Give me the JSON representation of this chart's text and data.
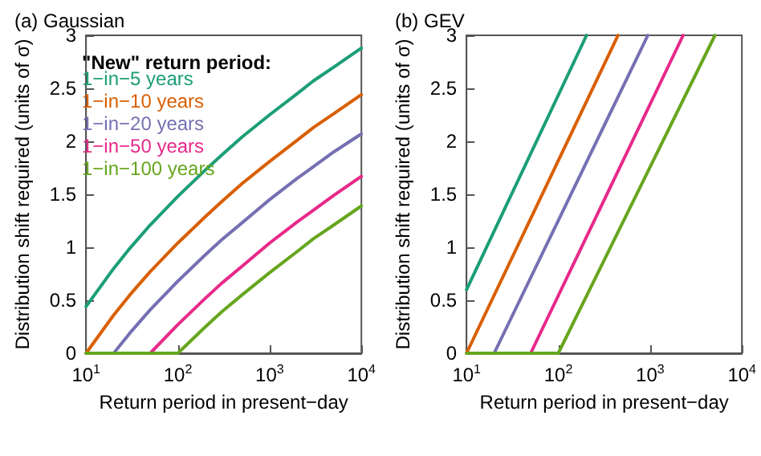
{
  "chart_data": [
    {
      "type": "line",
      "title": "(a) Gaussian",
      "xlabel": "Return period in present−day",
      "ylabel": "Distribution shift required (units of σ)",
      "legend_title": "\"New\" return period:",
      "legend": "top left",
      "log": "x",
      "grid": false,
      "marker": "none",
      "line_style": "solid",
      "x": [
        10,
        20,
        30,
        50,
        100,
        200,
        300,
        500,
        1000,
        2000,
        3000,
        5000,
        10000
      ],
      "xlim": [
        10,
        10000
      ],
      "xticks": [
        {
          "value": 10,
          "label": "10$^{1}$"
        },
        {
          "value": 100,
          "label": "10$^{2}$"
        },
        {
          "value": 1000,
          "label": "10$^{3}$"
        },
        {
          "value": 10000,
          "label": "10$^{4}$"
        }
      ],
      "ylim": [
        0,
        3
      ],
      "yticks": [
        0,
        0.5,
        1,
        1.5,
        2,
        2.5,
        3
      ],
      "series": [
        {
          "name": "1−in−5 years",
          "color": "#1b9e77",
          "values": [
            0.44,
            0.8,
            0.99,
            1.21,
            1.48,
            1.73,
            1.87,
            2.04,
            2.25,
            2.45,
            2.57,
            2.7,
            2.88
          ]
        },
        {
          "name": "1−in−10 years",
          "color": "#d95f02",
          "values": [
            0,
            0.36,
            0.55,
            0.77,
            1.04,
            1.29,
            1.43,
            1.6,
            1.81,
            2.01,
            2.13,
            2.26,
            2.44
          ]
        },
        {
          "name": "1−in−20 years",
          "color": "#7570b3",
          "values": [
            null,
            0,
            0.19,
            0.41,
            0.68,
            0.93,
            1.07,
            1.23,
            1.45,
            1.65,
            1.76,
            1.9,
            2.07
          ]
        },
        {
          "name": "1−in−50 years",
          "color": "#e7298a",
          "values": [
            null,
            null,
            null,
            0,
            0.27,
            0.52,
            0.66,
            0.82,
            1.04,
            1.24,
            1.35,
            1.49,
            1.67
          ]
        },
        {
          "name": "1−in−100 years",
          "color": "#66a61e",
          "values": [
            0,
            0,
            0,
            0,
            0,
            0.25,
            0.39,
            0.55,
            0.76,
            0.96,
            1.08,
            1.21,
            1.39
          ]
        }
      ]
    },
    {
      "type": "line",
      "title": "(b) GEV",
      "xlabel": "Return period in present−day",
      "ylabel": "Distribution shift required (units of σ)",
      "log": "x",
      "grid": false,
      "marker": "none",
      "line_style": "solid",
      "xlim": [
        10,
        10000
      ],
      "xticks": [
        {
          "value": 10,
          "label": "10$^{1}$"
        },
        {
          "value": 100,
          "label": "10$^{2}$"
        },
        {
          "value": 1000,
          "label": "10$^{3}$"
        },
        {
          "value": 10000,
          "label": "10$^{4}$"
        }
      ],
      "ylim": [
        0,
        3
      ],
      "yticks": [
        0,
        0.5,
        1,
        1.5,
        2,
        2.5,
        3
      ],
      "series": [
        {
          "color": "#1b9e77",
          "x": [
            10,
            203
          ],
          "values": [
            0.6,
            3
          ]
        },
        {
          "color": "#d95f02",
          "x": [
            10,
            447
          ],
          "values": [
            0,
            3
          ]
        },
        {
          "color": "#7570b3",
          "x": [
            20,
            944
          ],
          "values": [
            0,
            3
          ]
        },
        {
          "color": "#e7298a",
          "x": [
            50,
            2290
          ],
          "values": [
            0,
            3
          ]
        },
        {
          "color": "#66a61e",
          "x": [
            10,
            100,
            5090
          ],
          "values": [
            0,
            0,
            3
          ]
        }
      ]
    }
  ]
}
